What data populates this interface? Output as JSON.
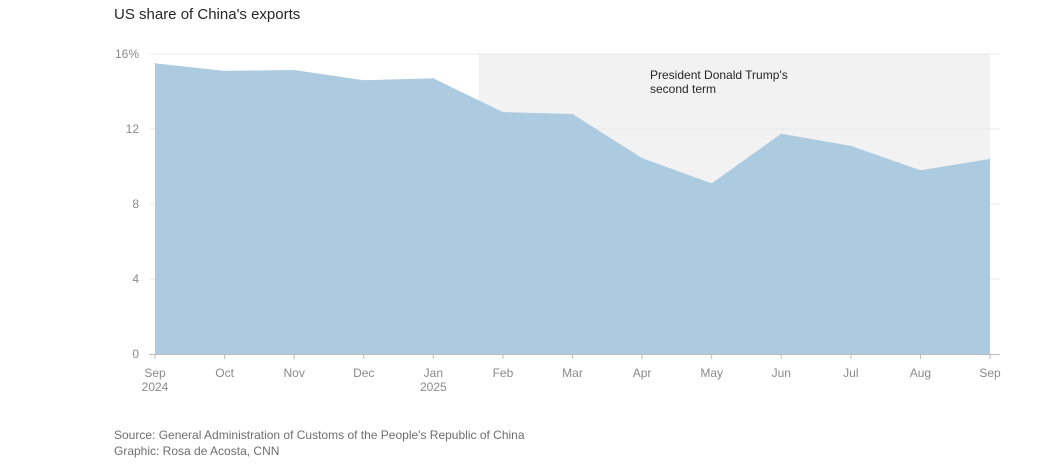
{
  "chart_data": {
    "type": "area",
    "title": "US share of China's exports",
    "x": [
      "Sep",
      "Oct",
      "Nov",
      "Dec",
      "Jan",
      "Feb",
      "Mar",
      "Apr",
      "May",
      "Jun",
      "Jul",
      "Aug",
      "Sep"
    ],
    "x_sublabels": [
      "2024",
      "",
      "",
      "",
      "2025",
      "",
      "",
      "",
      "",
      "",
      "",
      "",
      ""
    ],
    "series": [
      {
        "values": [
          15.5,
          15.1,
          15.15,
          14.6,
          14.7,
          12.9,
          12.8,
          10.45,
          9.1,
          11.75,
          11.1,
          9.8,
          10.4
        ]
      }
    ],
    "y_ticks": [
      0,
      4,
      8,
      12,
      16
    ],
    "y_tick_labels": [
      "0",
      "4",
      "8",
      "12",
      "16%"
    ],
    "ylim": [
      0,
      16
    ],
    "grid": true,
    "shaded_region": {
      "from": 4.65,
      "to": 12,
      "label_lines": [
        "President Donald Trump's",
        "second term"
      ]
    },
    "colors": {
      "area": "#a8c8de",
      "shade": "#f2f2f2",
      "grid": "#e8e8e8",
      "axis": "#bdbdbd"
    }
  },
  "footer": {
    "source": "Source: General Administration of Customs of the People's Republic of China",
    "graphic": "Graphic: Rosa de Acosta, CNN"
  }
}
